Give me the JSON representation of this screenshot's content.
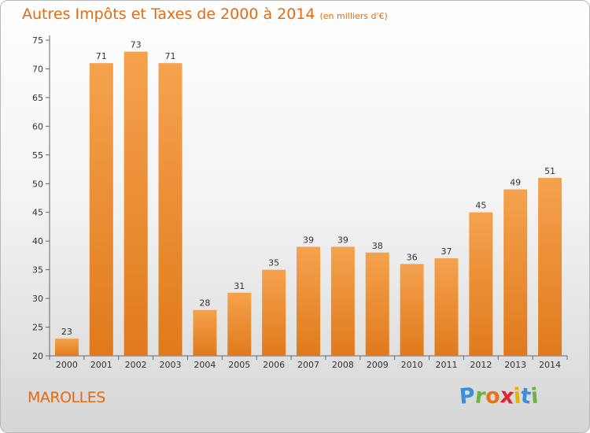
{
  "title": {
    "main": "Autres Impôts et Taxes de 2000 à 2014",
    "unit": "(en milliers d'€)"
  },
  "place": "MAROLLES",
  "logo": {
    "letters": [
      "P",
      "r",
      "o",
      "x",
      "i",
      "t",
      "i"
    ],
    "colors": [
      "#3a8fd6",
      "#6db33f",
      "#e8731a",
      "#d9272e",
      "#e8b100",
      "#3a8fd6",
      "#6db33f"
    ]
  },
  "chart_data": {
    "type": "bar",
    "title": "Autres Impôts et Taxes de 2000 à 2014",
    "subtitle": "(en milliers d'€)",
    "categories": [
      "2000",
      "2001",
      "2002",
      "2003",
      "2004",
      "2005",
      "2006",
      "2007",
      "2008",
      "2009",
      "2010",
      "2011",
      "2012",
      "2013",
      "2014"
    ],
    "values": [
      23,
      71,
      73,
      71,
      28,
      31,
      35,
      39,
      39,
      38,
      36,
      37,
      45,
      49,
      51
    ],
    "ylim": [
      20,
      75
    ],
    "yticks": [
      20,
      25,
      30,
      35,
      40,
      45,
      50,
      55,
      60,
      65,
      70,
      75
    ],
    "xlabel": "",
    "ylabel": "",
    "grid": false,
    "bar_color_top": "#f5a24e",
    "bar_color_bottom": "#e07a1c"
  }
}
